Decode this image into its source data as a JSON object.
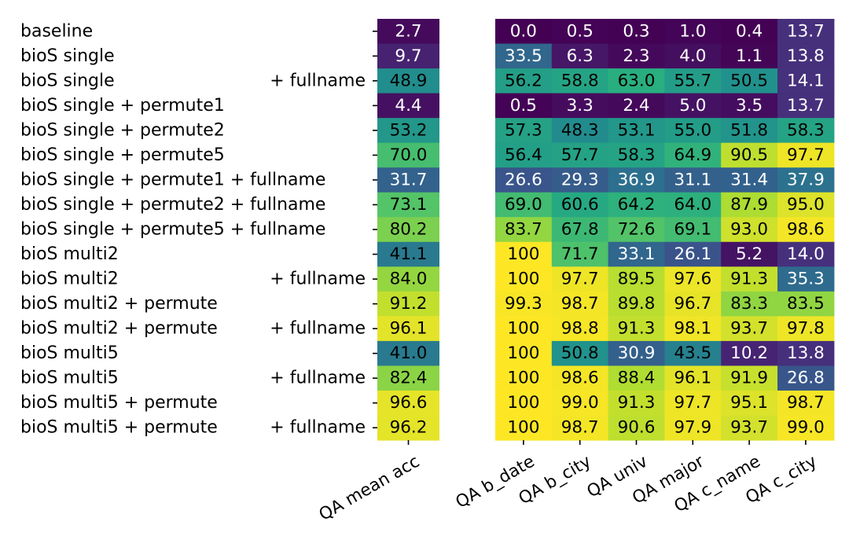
{
  "chart_data": {
    "type": "heatmap",
    "colormap": "viridis",
    "value_range": [
      0,
      100
    ],
    "rows": [
      {
        "label": "baseline",
        "suffix": ""
      },
      {
        "label": "bioS single",
        "suffix": ""
      },
      {
        "label": "bioS single",
        "suffix": "+ fullname"
      },
      {
        "label": "bioS single + permute1",
        "suffix": ""
      },
      {
        "label": "bioS single + permute2",
        "suffix": ""
      },
      {
        "label": "bioS single + permute5",
        "suffix": ""
      },
      {
        "label": "bioS single + permute1 + fullname",
        "suffix": ""
      },
      {
        "label": "bioS single + permute2 + fullname",
        "suffix": ""
      },
      {
        "label": "bioS single + permute5 + fullname",
        "suffix": ""
      },
      {
        "label": "bioS multi2",
        "suffix": ""
      },
      {
        "label": "bioS multi2",
        "suffix": "+ fullname"
      },
      {
        "label": "bioS multi2 + permute",
        "suffix": ""
      },
      {
        "label": "bioS multi2 + permute",
        "suffix": "+ fullname"
      },
      {
        "label": "bioS multi5",
        "suffix": ""
      },
      {
        "label": "bioS multi5",
        "suffix": "+ fullname"
      },
      {
        "label": "bioS multi5 + permute",
        "suffix": ""
      },
      {
        "label": "bioS multi5 + permute",
        "suffix": "+ fullname"
      }
    ],
    "mean_column": {
      "label": "QA mean acc",
      "values": [
        2.7,
        9.7,
        48.9,
        4.4,
        53.2,
        70.0,
        31.7,
        73.1,
        80.2,
        41.1,
        84.0,
        91.2,
        96.1,
        41.0,
        82.4,
        96.6,
        96.2
      ],
      "labels": [
        "2.7",
        "9.7",
        "48.9",
        "4.4",
        "53.2",
        "70.0",
        "31.7",
        "73.1",
        "80.2",
        "41.1",
        "84.0",
        "91.2",
        "96.1",
        "41.0",
        "82.4",
        "96.6",
        "96.2"
      ]
    },
    "columns": [
      "QA b_date",
      "QA b_city",
      "QA univ",
      "QA major",
      "QA c_name",
      "QA c_city"
    ],
    "values": [
      [
        0.0,
        0.5,
        0.3,
        1.0,
        0.4,
        13.7
      ],
      [
        33.5,
        6.3,
        2.3,
        4.0,
        1.1,
        13.8
      ],
      [
        56.2,
        58.8,
        63.0,
        55.7,
        50.5,
        14.1
      ],
      [
        0.5,
        3.3,
        2.4,
        5.0,
        3.5,
        13.7
      ],
      [
        57.3,
        48.3,
        53.1,
        55.0,
        51.8,
        58.3
      ],
      [
        56.4,
        57.7,
        58.3,
        64.9,
        90.5,
        97.7
      ],
      [
        26.6,
        29.3,
        36.9,
        31.1,
        31.4,
        37.9
      ],
      [
        69.0,
        60.6,
        64.2,
        64.0,
        87.9,
        95.0
      ],
      [
        83.7,
        67.8,
        72.6,
        69.1,
        93.0,
        98.6
      ],
      [
        100,
        71.7,
        33.1,
        26.1,
        5.2,
        14.0
      ],
      [
        100,
        97.7,
        89.5,
        97.6,
        91.3,
        35.3
      ],
      [
        99.3,
        98.7,
        89.8,
        96.7,
        83.3,
        83.5
      ],
      [
        100,
        98.8,
        91.3,
        98.1,
        93.7,
        97.8
      ],
      [
        100,
        50.8,
        30.9,
        43.5,
        10.2,
        13.8
      ],
      [
        100,
        98.6,
        88.4,
        96.1,
        91.9,
        26.8
      ],
      [
        100,
        99.0,
        91.3,
        97.7,
        95.1,
        98.7
      ],
      [
        100,
        98.7,
        90.6,
        97.9,
        93.7,
        99.0
      ]
    ],
    "labels": [
      [
        "0.0",
        "0.5",
        "0.3",
        "1.0",
        "0.4",
        "13.7"
      ],
      [
        "33.5",
        "6.3",
        "2.3",
        "4.0",
        "1.1",
        "13.8"
      ],
      [
        "56.2",
        "58.8",
        "63.0",
        "55.7",
        "50.5",
        "14.1"
      ],
      [
        "0.5",
        "3.3",
        "2.4",
        "5.0",
        "3.5",
        "13.7"
      ],
      [
        "57.3",
        "48.3",
        "53.1",
        "55.0",
        "51.8",
        "58.3"
      ],
      [
        "56.4",
        "57.7",
        "58.3",
        "64.9",
        "90.5",
        "97.7"
      ],
      [
        "26.6",
        "29.3",
        "36.9",
        "31.1",
        "31.4",
        "37.9"
      ],
      [
        "69.0",
        "60.6",
        "64.2",
        "64.0",
        "87.9",
        "95.0"
      ],
      [
        "83.7",
        "67.8",
        "72.6",
        "69.1",
        "93.0",
        "98.6"
      ],
      [
        "100",
        "71.7",
        "33.1",
        "26.1",
        "5.2",
        "14.0"
      ],
      [
        "100",
        "97.7",
        "89.5",
        "97.6",
        "91.3",
        "35.3"
      ],
      [
        "99.3",
        "98.7",
        "89.8",
        "96.7",
        "83.3",
        "83.5"
      ],
      [
        "100",
        "98.8",
        "91.3",
        "98.1",
        "93.7",
        "97.8"
      ],
      [
        "100",
        "50.8",
        "30.9",
        "43.5",
        "10.2",
        "13.8"
      ],
      [
        "100",
        "98.6",
        "88.4",
        "96.1",
        "91.9",
        "26.8"
      ],
      [
        "100",
        "99.0",
        "91.3",
        "97.7",
        "95.1",
        "98.7"
      ],
      [
        "100",
        "98.7",
        "90.6",
        "97.9",
        "93.7",
        "99.0"
      ]
    ]
  }
}
